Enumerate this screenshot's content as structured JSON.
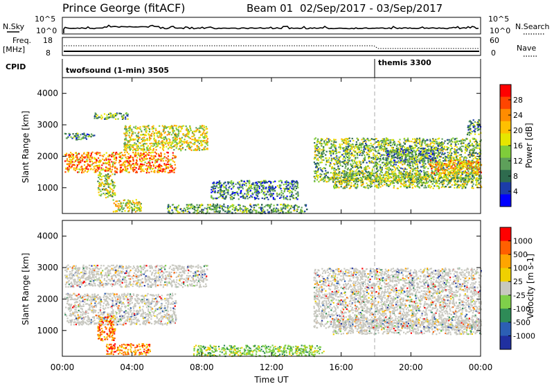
{
  "header": {
    "station": "Prince George (fitACF)",
    "beam": "Beam 01",
    "date_range": "02/Sep/2017 - 03/Sep/2017"
  },
  "top_panels": {
    "nsky_label": "N.Sky",
    "nsearch_label": "N.Search",
    "nsky_ticks": [
      "10^5",
      "10^0"
    ],
    "nsearch_ticks": [
      "10^5",
      "10^0"
    ],
    "freq_label_1": "Freq.",
    "freq_label_2": "[MHz]",
    "freq_ticks": [
      "18",
      "8"
    ],
    "nave_label": "Nave",
    "nave_ticks": [
      "60",
      "0"
    ],
    "cpid_label": "CPID",
    "cpid_segments": [
      {
        "name": "twofsound (1-min) 3505",
        "start_hour": 0
      },
      {
        "name": "themis 3300",
        "start_hour": 18
      }
    ]
  },
  "chart_data": [
    {
      "type": "heatmap",
      "title": "",
      "xlabel": "",
      "ylabel": "Slant Range [km]",
      "x_ticks": [
        "00:00",
        "04:00",
        "08:00",
        "12:00",
        "16:00",
        "20:00",
        "00:00"
      ],
      "y_ticks": [
        "1000",
        "2000",
        "3000",
        "4000"
      ],
      "xlim_hours": [
        0,
        24
      ],
      "ylim_km": [
        180,
        4500
      ],
      "colorbar": {
        "label": "Power [dB]",
        "ticks": [
          "4",
          "8",
          "12",
          "16",
          "20",
          "24",
          "28"
        ],
        "colors": [
          "#0000ff",
          "#1c3ca8",
          "#2e6b4e",
          "#5ea05a",
          "#7fcd3a",
          "#e6e600",
          "#ffc000",
          "#ff8c00",
          "#ff4500",
          "#ff0000"
        ]
      },
      "scatter_bands": [
        {
          "from_h": 0.1,
          "to_h": 6.5,
          "from_km": 1500,
          "to_km": 2150,
          "level": 0.75
        },
        {
          "from_h": 0.1,
          "to_h": 1.8,
          "from_km": 2550,
          "to_km": 2750,
          "level": 0.3
        },
        {
          "from_h": 1.8,
          "to_h": 3.8,
          "from_km": 3200,
          "to_km": 3400,
          "level": 0.35
        },
        {
          "from_h": 3.5,
          "to_h": 8.3,
          "from_km": 2200,
          "to_km": 3000,
          "level": 0.55
        },
        {
          "from_h": 2.0,
          "to_h": 3.0,
          "from_km": 700,
          "to_km": 1500,
          "level": 0.5
        },
        {
          "from_h": 2.8,
          "to_h": 4.5,
          "from_km": 250,
          "to_km": 650,
          "level": 0.55
        },
        {
          "from_h": 6.0,
          "to_h": 14.0,
          "from_km": 200,
          "to_km": 500,
          "level": 0.35
        },
        {
          "from_h": 8.5,
          "to_h": 13.5,
          "from_km": 650,
          "to_km": 1250,
          "level": 0.25
        },
        {
          "from_h": 14.4,
          "to_h": 24.0,
          "from_km": 1200,
          "to_km": 2600,
          "level": 0.4
        },
        {
          "from_h": 15.5,
          "to_h": 24.0,
          "from_km": 1000,
          "to_km": 1500,
          "level": 0.45
        },
        {
          "from_h": 21.0,
          "to_h": 24.0,
          "from_km": 1450,
          "to_km": 1900,
          "level": 0.7
        },
        {
          "from_h": 18.5,
          "to_h": 21.5,
          "from_km": 1800,
          "to_km": 2300,
          "level": 0.3
        },
        {
          "from_h": 23.2,
          "to_h": 24.0,
          "from_km": 2700,
          "to_km": 3200,
          "level": 0.3
        }
      ]
    },
    {
      "type": "heatmap",
      "title": "",
      "xlabel": "Time UT",
      "ylabel": "Slant Range [km]",
      "x_ticks": [
        "00:00",
        "04:00",
        "08:00",
        "12:00",
        "16:00",
        "20:00",
        "00:00"
      ],
      "y_ticks": [
        "1000",
        "2000",
        "3000",
        "4000"
      ],
      "xlim_hours": [
        0,
        24
      ],
      "ylim_km": [
        180,
        4500
      ],
      "colorbar": {
        "label": "Velocity [m s-1]",
        "ticks": [
          "1000",
          "500",
          "100",
          "25",
          "-25",
          "-100",
          "-500",
          "-1000"
        ],
        "colors": [
          "#2030a0",
          "#2c5fb4",
          "#2e8b57",
          "#7fd04a",
          "#c8c8c0",
          "#f0d000",
          "#ffa500",
          "#ff6000",
          "#ff0000"
        ]
      },
      "ground_scatter_color": "#c8c8c0",
      "scatter_bands": [
        {
          "from_h": 0.1,
          "to_h": 6.5,
          "from_km": 1200,
          "to_km": 2200,
          "level": 0.5
        },
        {
          "from_h": 0.1,
          "to_h": 8.3,
          "from_km": 2400,
          "to_km": 3100,
          "level": 0.5
        },
        {
          "from_h": 2.0,
          "to_h": 3.0,
          "from_km": 700,
          "to_km": 1500,
          "level": 0.9
        },
        {
          "from_h": 2.5,
          "to_h": 5.0,
          "from_km": 250,
          "to_km": 600,
          "level": 0.8
        },
        {
          "from_h": 7.5,
          "to_h": 15.0,
          "from_km": 200,
          "to_km": 550,
          "level": 0.2
        },
        {
          "from_h": 14.4,
          "to_h": 24.0,
          "from_km": 1100,
          "to_km": 3000,
          "level": 0.5
        },
        {
          "from_h": 15.5,
          "to_h": 24.0,
          "from_km": 900,
          "to_km": 1400,
          "level": 0.5
        }
      ]
    }
  ]
}
